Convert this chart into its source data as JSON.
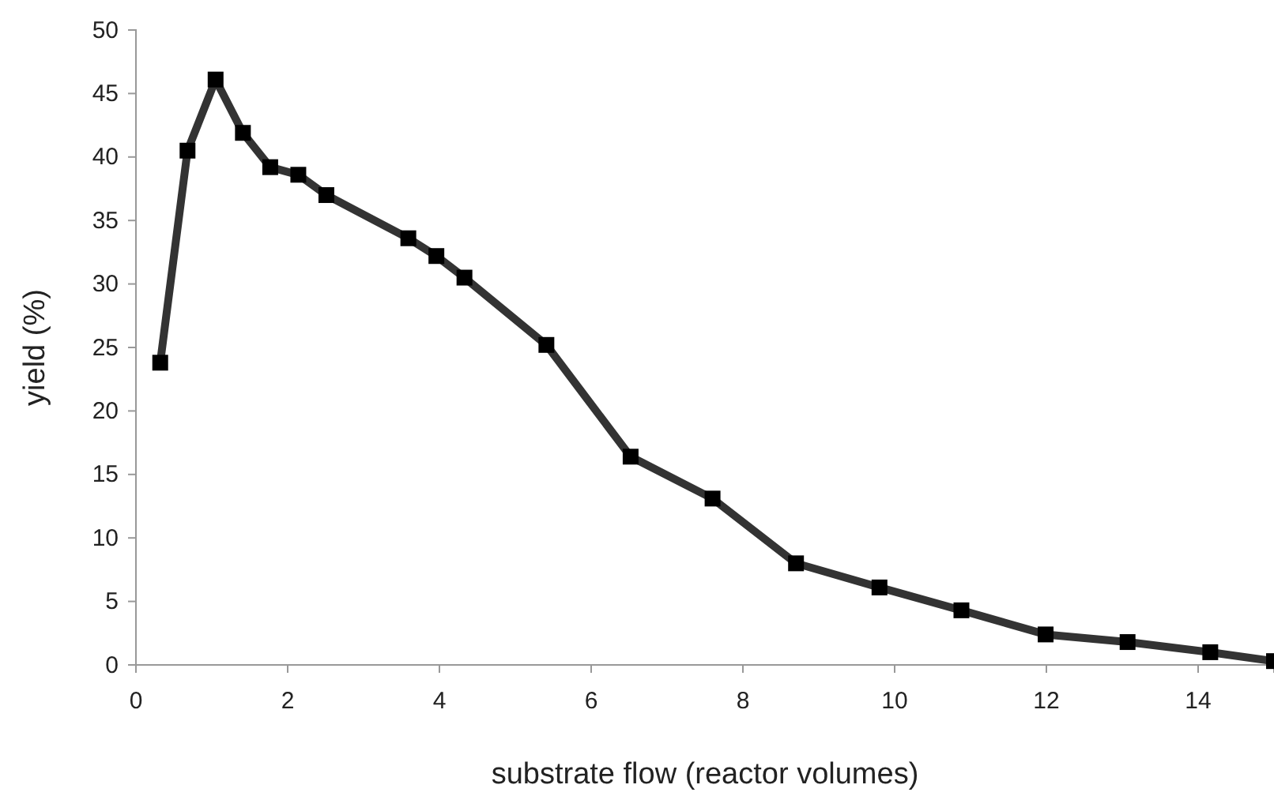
{
  "chart_data": {
    "type": "line",
    "xlabel": "substrate flow (reactor volumes)",
    "ylabel": "yield (%)",
    "xlim": [
      0,
      15
    ],
    "ylim": [
      0,
      50
    ],
    "xticks": [
      0,
      2,
      4,
      6,
      8,
      10,
      12,
      14
    ],
    "yticks": [
      0,
      5,
      10,
      15,
      20,
      25,
      30,
      35,
      40,
      45,
      50
    ],
    "grid": false,
    "marker": "square",
    "line_style": "solid",
    "series": [
      {
        "color": "#333333",
        "x": [
          0.32,
          0.68,
          1.05,
          1.41,
          1.77,
          2.14,
          2.51,
          3.59,
          3.96,
          4.33,
          5.41,
          6.52,
          7.6,
          8.7,
          9.8,
          10.88,
          11.99,
          13.07,
          14.16,
          15
        ],
        "values": [
          23.8,
          40.5,
          46.1,
          41.9,
          39.2,
          38.6,
          37.0,
          33.6,
          32.2,
          30.5,
          25.2,
          16.4,
          13.1,
          8.0,
          6.1,
          4.3,
          2.4,
          1.8,
          1.0,
          0.3
        ]
      }
    ]
  }
}
